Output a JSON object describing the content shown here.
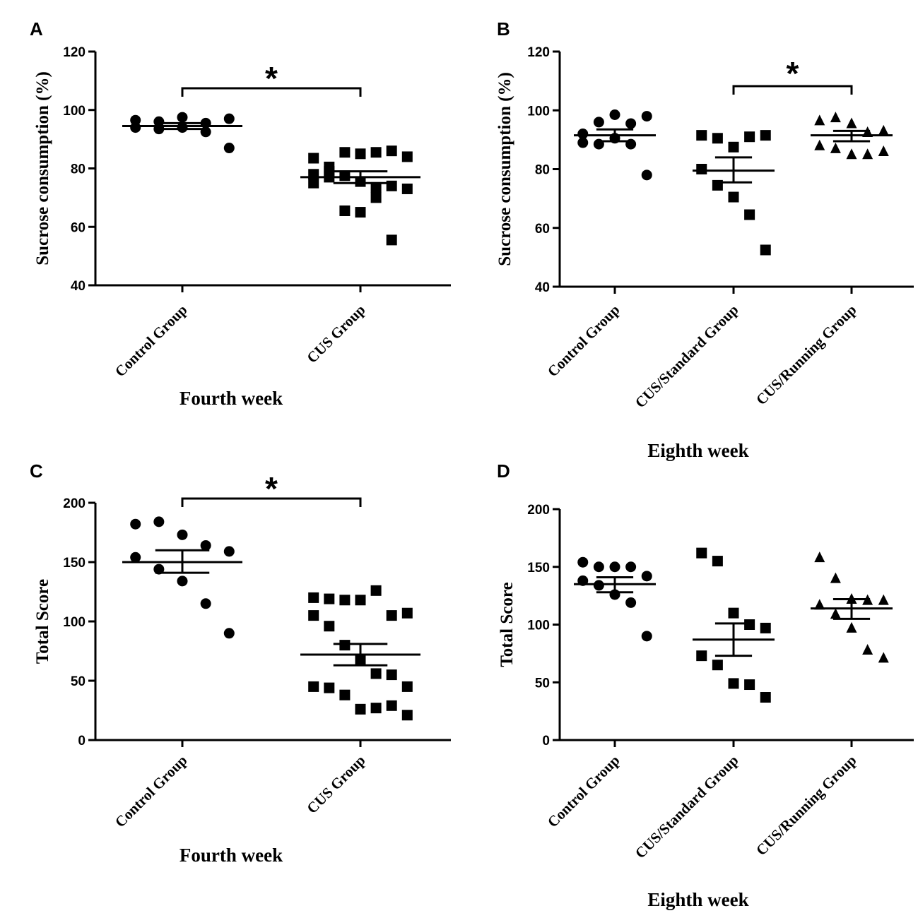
{
  "chart_data": [
    {
      "panel": "A",
      "type": "scatter",
      "ylabel": "Sucrose consumption (%)",
      "xlabel": "Fourth week",
      "ylim": [
        40,
        120
      ],
      "yticks": [
        "40",
        "60",
        "80",
        "100",
        "120"
      ],
      "categories": [
        "Control Group",
        "CUS Group"
      ],
      "series": [
        {
          "name": "Control Group",
          "marker": "circle",
          "mean": 94.5,
          "sem_upper": 95.5,
          "sem_lower": 93.5,
          "values": [
            96.5,
            96,
            97.5,
            95.5,
            97,
            94,
            93.5,
            94,
            92.5,
            87
          ]
        },
        {
          "name": "CUS Group",
          "marker": "square",
          "mean": 77,
          "sem_upper": 79,
          "sem_lower": 75,
          "values": [
            83.5,
            80.5,
            85.5,
            85,
            85.5,
            86,
            84,
            78,
            79,
            77.5,
            75.5,
            73.5,
            74,
            73,
            75,
            77,
            65.5,
            65,
            70,
            55.5
          ]
        }
      ],
      "significance": {
        "from": 0,
        "to": 1,
        "label": "*"
      }
    },
    {
      "panel": "B",
      "type": "scatter",
      "ylabel": "Sucrose consumption (%)",
      "xlabel": "Eighth week",
      "ylim": [
        40,
        120
      ],
      "yticks": [
        "40",
        "60",
        "80",
        "100",
        "120"
      ],
      "categories": [
        "Control Group",
        "CUS/Standard Group",
        "CUS/Running Group"
      ],
      "series": [
        {
          "name": "Control Group",
          "marker": "circle",
          "mean": 91.5,
          "sem_upper": 93.5,
          "sem_lower": 89.5,
          "values": [
            92,
            96,
            98.5,
            95.5,
            98,
            89,
            88.5,
            90.5,
            88.5,
            78
          ]
        },
        {
          "name": "CUS/Standard Group",
          "marker": "square",
          "mean": 79.5,
          "sem_upper": 84,
          "sem_lower": 75.5,
          "values": [
            91.5,
            90.5,
            87.5,
            91,
            91.5,
            80,
            74.5,
            70.5,
            64.5,
            52.5
          ]
        },
        {
          "name": "CUS/Running Group",
          "marker": "triangle",
          "mean": 91.5,
          "sem_upper": 93,
          "sem_lower": 89.5,
          "values": [
            96.5,
            97.5,
            95.5,
            92.5,
            93,
            88,
            87,
            85,
            85,
            86
          ]
        }
      ],
      "significance": {
        "from": 1,
        "to": 2,
        "label": "*"
      }
    },
    {
      "panel": "C",
      "type": "scatter",
      "ylabel": "Total Score",
      "xlabel": "Fourth week",
      "ylim": [
        0,
        200
      ],
      "yticks": [
        "0",
        "50",
        "100",
        "150",
        "200"
      ],
      "categories": [
        "Control Group",
        "CUS Group"
      ],
      "series": [
        {
          "name": "Control Group",
          "marker": "circle",
          "mean": 150,
          "sem_upper": 160,
          "sem_lower": 141,
          "values": [
            182,
            184,
            173,
            164,
            159,
            154,
            144,
            134,
            115,
            90
          ]
        },
        {
          "name": "CUS Group",
          "marker": "square",
          "mean": 72,
          "sem_upper": 81,
          "sem_lower": 63,
          "values": [
            120,
            119,
            118,
            118,
            126,
            105,
            107,
            105,
            96,
            80,
            67,
            56,
            55,
            45,
            45,
            44,
            38,
            26,
            27,
            29,
            21
          ]
        }
      ],
      "significance": {
        "from": 0,
        "to": 1,
        "label": "*"
      }
    },
    {
      "panel": "D",
      "type": "scatter",
      "ylabel": "Total Score",
      "xlabel": "Eighth week",
      "ylim": [
        0,
        200
      ],
      "yticks": [
        "0",
        "50",
        "100",
        "150",
        "200"
      ],
      "categories": [
        "Control Group",
        "CUS/Standard Group",
        "CUS/Running Group"
      ],
      "series": [
        {
          "name": "Control Group",
          "marker": "circle",
          "mean": 135,
          "sem_upper": 141,
          "sem_lower": 128,
          "values": [
            154,
            150,
            150,
            150,
            142,
            138,
            134,
            126,
            119,
            90
          ]
        },
        {
          "name": "CUS/Standard Group",
          "marker": "square",
          "mean": 87,
          "sem_upper": 101,
          "sem_lower": 73,
          "values": [
            162,
            155,
            110,
            100,
            97,
            73,
            65,
            49,
            48,
            37
          ]
        },
        {
          "name": "CUS/Running Group",
          "marker": "triangle",
          "mean": 114,
          "sem_upper": 122,
          "sem_lower": 105,
          "values": [
            158,
            140,
            122,
            121,
            121,
            117,
            109,
            97,
            78,
            71
          ]
        }
      ]
    }
  ]
}
